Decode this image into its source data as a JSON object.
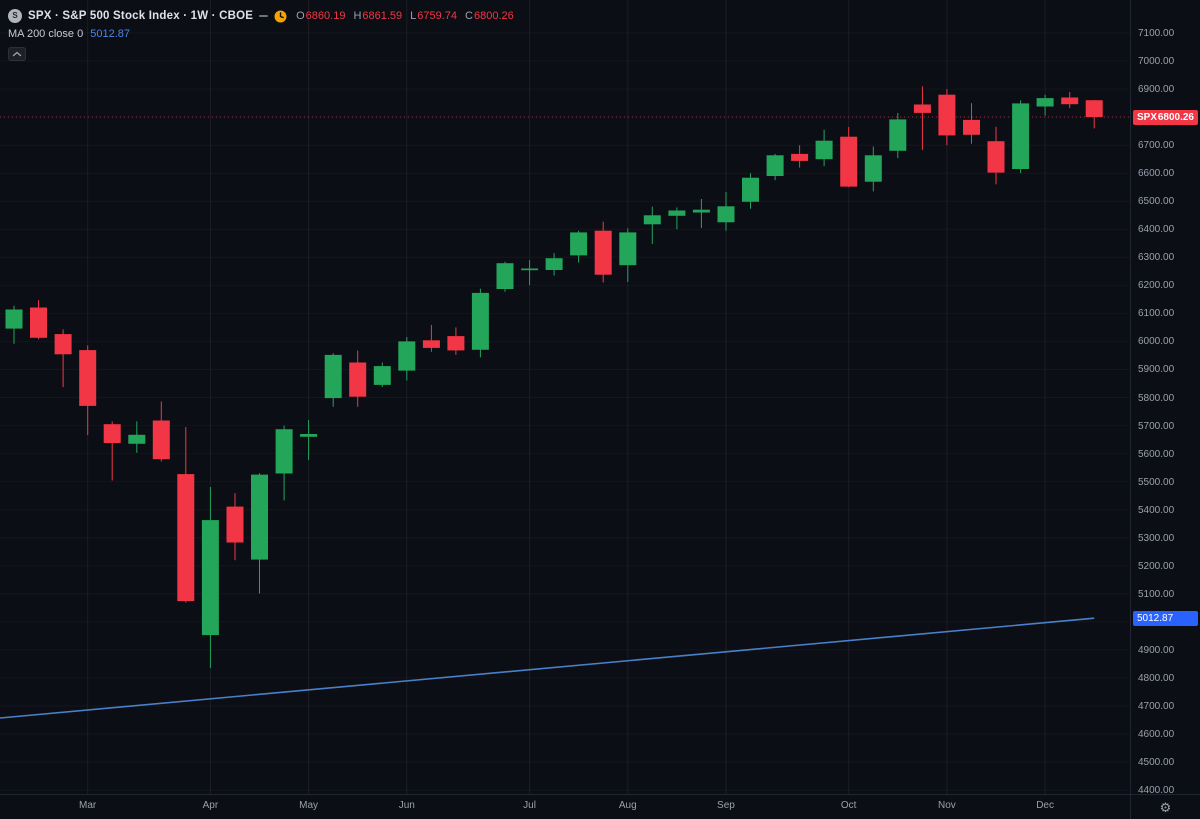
{
  "app": {
    "bg": "#0c0e15",
    "grid_color": "rgba(255,255,255,0.06)",
    "text_muted": "#9aa0ac",
    "text_bright": "#dde1e8"
  },
  "legend": {
    "title": "SPX · S&P 500 Stock Index · 1W · CBOE",
    "logo_text": "S",
    "ohlc": [
      {
        "label": "O",
        "value": "6860.19"
      },
      {
        "label": "H",
        "value": "6861.59"
      },
      {
        "label": "L",
        "value": "6759.74"
      },
      {
        "label": "C",
        "value": "6800.26"
      }
    ],
    "ohlc_value_color": "#f23645",
    "indicator": {
      "name": "MA 200 close 0",
      "value": "5012.87",
      "value_color": "#4a85e8"
    },
    "market_status_color": "#f5a300"
  },
  "price_axis": {
    "label_max": 7100,
    "label_min": 4400,
    "label_step": 100,
    "symbol_badge": {
      "symbol": "SPX",
      "price": "6800.26",
      "bg": "#f23645"
    },
    "ma_badge": {
      "value": "5012.87",
      "bg": "#2962ff"
    }
  },
  "icons": {
    "gear": "⚙"
  },
  "chart_data": {
    "type": "candlestick",
    "title": "SPX · S&P 500 Stock Index · 1W · CBOE",
    "timeframe": "1W",
    "exchange": "CBOE",
    "up_color": "#23a55a",
    "down_color": "#f23645",
    "ylim": [
      4382,
      7218
    ],
    "y_axis": {
      "max": 7100,
      "min": 4400,
      "step": 100
    },
    "last_price": 6800.26,
    "last_ohlc": {
      "open": 6860.19,
      "high": 6861.59,
      "low": 6759.74,
      "close": 6800.26
    },
    "ma200": {
      "name": "MA 200 close 0",
      "first_value": 4657,
      "last_value": 5012.87,
      "line_color": "#4a80c9",
      "badge_color": "#2962ff"
    },
    "x_months": [
      {
        "label": "Mar",
        "candle_index": 3
      },
      {
        "label": "Apr",
        "candle_index": 8
      },
      {
        "label": "May",
        "candle_index": 12
      },
      {
        "label": "Jun",
        "candle_index": 16
      },
      {
        "label": "Jul",
        "candle_index": 21
      },
      {
        "label": "Aug",
        "candle_index": 25
      },
      {
        "label": "Sep",
        "candle_index": 29
      },
      {
        "label": "Oct",
        "candle_index": 34
      },
      {
        "label": "Nov",
        "candle_index": 38
      },
      {
        "label": "Dec",
        "candle_index": 42
      }
    ],
    "candles": [
      [
        6046,
        6127,
        5992,
        6114
      ],
      [
        6121,
        6147,
        6008,
        6013
      ],
      [
        6026,
        6043,
        5837,
        5954
      ],
      [
        5969,
        5986,
        5666,
        5770
      ],
      [
        5705,
        5715,
        5504,
        5638
      ],
      [
        5635,
        5715,
        5603,
        5667
      ],
      [
        5718,
        5786,
        5572,
        5580
      ],
      [
        5527,
        5695,
        5069,
        5074
      ],
      [
        4953,
        5481,
        4835,
        5363
      ],
      [
        5411,
        5459,
        5220,
        5283
      ],
      [
        5222,
        5530,
        5101,
        5525
      ],
      [
        5529,
        5700,
        5433,
        5687
      ],
      [
        5660,
        5720,
        5578,
        5670
      ],
      [
        5798,
        5958,
        5767,
        5952
      ],
      [
        5925,
        5968,
        5767,
        5803
      ],
      [
        5845,
        5925,
        5838,
        5912
      ],
      [
        5896,
        6016,
        5861,
        6000
      ],
      [
        6004,
        6059,
        5963,
        5977
      ],
      [
        6019,
        6050,
        5952,
        5968
      ],
      [
        5970,
        6188,
        5943,
        6173
      ],
      [
        6187,
        6284,
        6177,
        6279
      ],
      [
        6254,
        6290,
        6201,
        6260
      ],
      [
        6255,
        6315,
        6235,
        6297
      ],
      [
        6307,
        6395,
        6281,
        6389
      ],
      [
        6395,
        6427,
        6210,
        6238
      ],
      [
        6272,
        6403,
        6212,
        6389
      ],
      [
        6418,
        6481,
        6348,
        6450
      ],
      [
        6448,
        6478,
        6400,
        6467
      ],
      [
        6460,
        6508,
        6405,
        6470
      ],
      [
        6425,
        6533,
        6395,
        6482
      ],
      [
        6498,
        6600,
        6473,
        6584
      ],
      [
        6590,
        6669,
        6575,
        6664
      ],
      [
        6669,
        6700,
        6620,
        6644
      ],
      [
        6650,
        6755,
        6625,
        6716
      ],
      [
        6730,
        6765,
        6550,
        6552
      ],
      [
        6570,
        6695,
        6535,
        6664
      ],
      [
        6680,
        6815,
        6654,
        6792
      ],
      [
        6845,
        6910,
        6683,
        6815
      ],
      [
        6880,
        6900,
        6700,
        6735
      ],
      [
        6790,
        6850,
        6705,
        6737
      ],
      [
        6714,
        6766,
        6560,
        6602
      ],
      [
        6615,
        6860,
        6600,
        6849
      ],
      [
        6838,
        6880,
        6805,
        6868
      ],
      [
        6870,
        6890,
        6832,
        6846
      ],
      [
        6860.19,
        6861.59,
        6759.74,
        6800.26
      ]
    ]
  }
}
